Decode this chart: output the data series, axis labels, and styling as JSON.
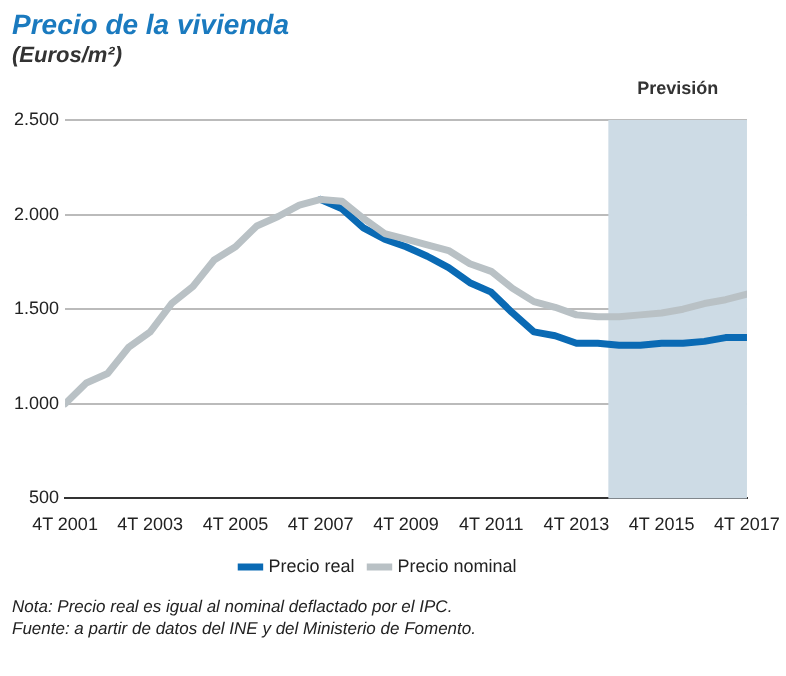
{
  "chart_data": {
    "type": "line",
    "title": "Precio de la vivienda",
    "ylabel": "(Euros/m²)",
    "x": [
      "2001-10",
      "2002-04",
      "2002-10",
      "2003-04",
      "2003-10",
      "2004-04",
      "2004-10",
      "2005-04",
      "2005-10",
      "2006-04",
      "2006-10",
      "2007-04",
      "2007-10",
      "2008-04",
      "2008-10",
      "2009-04",
      "2009-10",
      "2010-04",
      "2010-10",
      "2011-04",
      "2011-10",
      "2012-04",
      "2012-10",
      "2013-04",
      "2013-10",
      "2014-04",
      "2014-10",
      "2015-04",
      "2015-10",
      "2016-04",
      "2016-10",
      "2017-04",
      "2017-10"
    ],
    "series": [
      {
        "name": "Precio real",
        "color": "#0a6ab4",
        "values": [
          null,
          null,
          null,
          null,
          null,
          null,
          null,
          null,
          null,
          null,
          null,
          null,
          2080,
          2030,
          1930,
          1870,
          1830,
          1780,
          1720,
          1640,
          1590,
          1480,
          1380,
          1360,
          1320,
          1320,
          1310,
          1310,
          1320,
          1320,
          1330,
          1350,
          1350
        ]
      },
      {
        "name": "Precio nominal",
        "color": "#b9c1c5",
        "values": [
          1000,
          1110,
          1160,
          1300,
          1380,
          1530,
          1620,
          1760,
          1830,
          1940,
          1990,
          2050,
          2080,
          2070,
          1980,
          1900,
          1870,
          1840,
          1810,
          1740,
          1700,
          1610,
          1540,
          1510,
          1470,
          1460,
          1460,
          1470,
          1480,
          1500,
          1530,
          1550,
          1580
        ]
      }
    ],
    "xlim": [
      "2001-10",
      "2017-10"
    ],
    "xticks": [
      {
        "value": "2001-10",
        "label": "4T 2001"
      },
      {
        "value": "2003-10",
        "label": "4T 2003"
      },
      {
        "value": "2005-10",
        "label": "4T 2005"
      },
      {
        "value": "2007-10",
        "label": "4T 2007"
      },
      {
        "value": "2009-10",
        "label": "4T 2009"
      },
      {
        "value": "2011-10",
        "label": "4T 2011"
      },
      {
        "value": "2013-10",
        "label": "4T 2013"
      },
      {
        "value": "2015-10",
        "label": "4T 2015"
      },
      {
        "value": "2017-10",
        "label": "4T 2017"
      }
    ],
    "ylim": [
      500,
      2500
    ],
    "yticks": [
      {
        "value": 500,
        "label": "500"
      },
      {
        "value": 1000,
        "label": "1.000"
      },
      {
        "value": 1500,
        "label": "1.500"
      },
      {
        "value": 2000,
        "label": "2.000"
      },
      {
        "value": 2500,
        "label": "2.500"
      }
    ],
    "bands": [
      {
        "axis": "x",
        "from": "2014-07",
        "to": "2017-10",
        "label": "Previsión",
        "color": "#cddbe5"
      }
    ],
    "grid": "y",
    "legend": "bottom",
    "marker": "none",
    "line_style": "solid",
    "annotations": [
      "Nota: Precio real es igual al nominal deflactado por el IPC.",
      "Fuente: a partir de datos del INE y del Ministerio de Fomento."
    ]
  }
}
